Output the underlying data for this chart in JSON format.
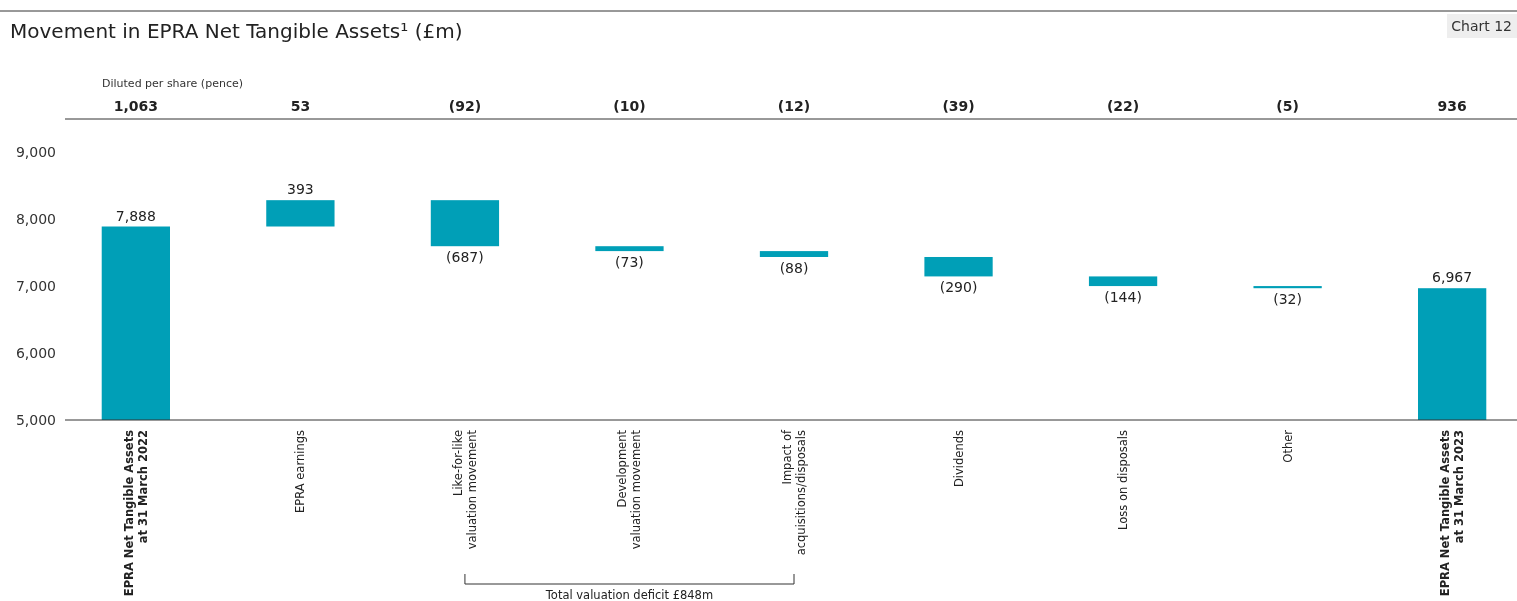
{
  "chart_data": {
    "type": "bar",
    "title": "Movement in EPRA Net Tangible Assets¹ (£m)",
    "categories": [
      "EPRA Net Tangible Assets\nat 31 March 2022",
      "EPRA earnings",
      "Like-for-like\nvaluation movement",
      "Development\nvaluation movement",
      "Impact of\nacquisitions/disposals",
      "Dividends",
      "Loss on disposals",
      "Other",
      "EPRA Net Tangible Assets\nat 31 March 2023"
    ],
    "values": [
      7888,
      393,
      -687,
      -73,
      -88,
      -290,
      -144,
      -32,
      6967
    ],
    "base": [
      null,
      7888,
      8281,
      7594,
      7521,
      7433,
      7143,
      6999,
      null
    ],
    "value_labels": [
      "7,888",
      "393",
      "(687)",
      "(73)",
      "(88)",
      "(290)",
      "(144)",
      "(32)",
      "6,967"
    ],
    "color": "#009fb7",
    "ylim": [
      5000,
      9000
    ],
    "yticks": [
      {
        "value": 5000,
        "label": "5,000"
      },
      {
        "value": 6000,
        "label": "6,000"
      },
      {
        "value": 7000,
        "label": "7,000"
      },
      {
        "value": 8000,
        "label": "8,000"
      },
      {
        "value": 9000,
        "label": "9,000"
      }
    ],
    "grid": false,
    "annotations": [
      "Diluted per share (pence)",
      "1,063",
      "53",
      "(92)",
      "(10)",
      "(12)",
      "(39)",
      "(22)",
      "(5)",
      "936",
      "Total valuation deficit £848m",
      "Chart 12"
    ]
  }
}
